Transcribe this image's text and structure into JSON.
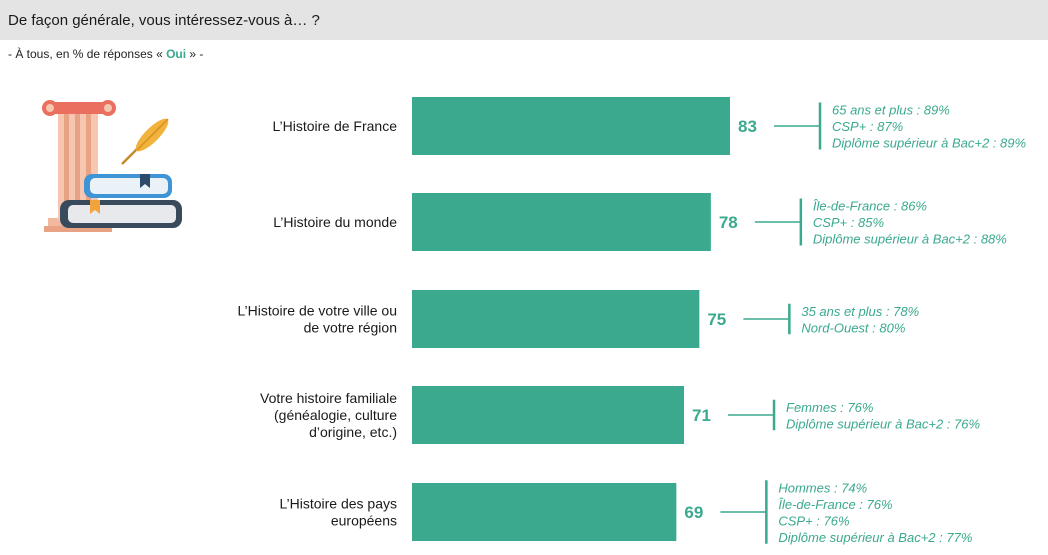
{
  "header": {
    "question": "De façon générale, vous intéressez-vous à… ?",
    "subtitle_prefix": "- À tous, en % de réponses « ",
    "subtitle_highlight": "Oui",
    "subtitle_suffix": " » -"
  },
  "illustration": {
    "icon": "history-column-books-quill-icon"
  },
  "colors": {
    "bar": "#3aa98e",
    "header_bg": "#e4e4e4",
    "text": "#1a1a1a"
  },
  "chart_data": {
    "type": "bar",
    "orientation": "horizontal",
    "title": "De façon générale, vous intéressez-vous à… ?",
    "subtitle": "- À tous, en % de réponses « Oui » -",
    "categories": [
      [
        "L’Histoire de France"
      ],
      [
        "L’Histoire du monde"
      ],
      [
        "L’Histoire de votre ville ou",
        "de votre région"
      ],
      [
        "Votre histoire familiale",
        "(généalogie, culture",
        "d’origine, etc.)"
      ],
      [
        "L’Histoire des pays",
        "européens"
      ]
    ],
    "values": [
      83,
      78,
      75,
      71,
      69
    ],
    "breakdowns": [
      [
        "65 ans et plus : 89%",
        "CSP+ : 87%",
        "Diplôme supérieur à Bac+2 : 89%"
      ],
      [
        "Île-de-France : 86%",
        "CSP+ : 85%",
        "Diplôme supérieur à Bac+2 : 88%"
      ],
      [
        "35 ans et plus : 78%",
        "Nord-Ouest : 80%"
      ],
      [
        "Femmes : 76%",
        "Diplôme supérieur à Bac+2 : 76%"
      ],
      [
        "Hommes : 74%",
        "Île-de-France : 76%",
        "CSP+ : 76%",
        "Diplôme supérieur à Bac+2 : 77%"
      ]
    ],
    "xlim": [
      0,
      100
    ],
    "grid": false,
    "legend": "none"
  }
}
